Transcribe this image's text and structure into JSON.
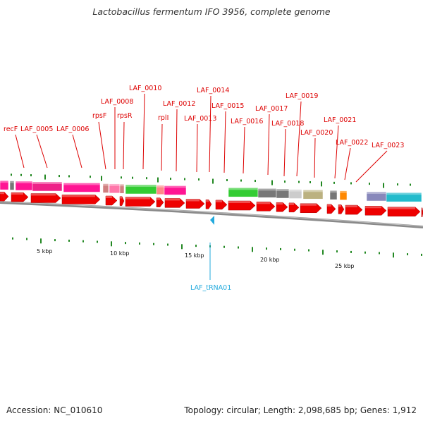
{
  "title": "Lactobacillus fermentum IFO 3956, complete genome",
  "footer": {
    "accession": "Accession: NC_010610",
    "info": "Topology: circular; Length: 2,098,685 bp; Genes: 1,912"
  },
  "colors": {
    "gene_label": "#dd0000",
    "trna_label": "#22aadd",
    "cds": "#ee0000",
    "backbone": "#8a8a8a",
    "tick": "#228822"
  },
  "gene_labels": [
    {
      "id": "recF",
      "text": "recF"
    },
    {
      "id": "LAF_0005",
      "text": "LAF_0005"
    },
    {
      "id": "LAF_0006",
      "text": "LAF_0006"
    },
    {
      "id": "rpsF",
      "text": "rpsF"
    },
    {
      "id": "LAF_0008",
      "text": "LAF_0008"
    },
    {
      "id": "rpsR",
      "text": "rpsR"
    },
    {
      "id": "LAF_0010",
      "text": "LAF_0010"
    },
    {
      "id": "rplI",
      "text": "rplI"
    },
    {
      "id": "LAF_0012",
      "text": "LAF_0012"
    },
    {
      "id": "LAF_0013",
      "text": "LAF_0013"
    },
    {
      "id": "LAF_0014",
      "text": "LAF_0014"
    },
    {
      "id": "LAF_0015",
      "text": "LAF_0015"
    },
    {
      "id": "LAF_0016",
      "text": "LAF_0016"
    },
    {
      "id": "LAF_0017",
      "text": "LAF_0017"
    },
    {
      "id": "LAF_0018",
      "text": "LAF_0018"
    },
    {
      "id": "LAF_0019",
      "text": "LAF_0019"
    },
    {
      "id": "LAF_0020",
      "text": "LAF_0020"
    },
    {
      "id": "LAF_0021",
      "text": "LAF_0021"
    },
    {
      "id": "LAF_0022",
      "text": "LAF_0022"
    },
    {
      "id": "LAF_0023",
      "text": "LAF_0023"
    }
  ],
  "trna_label": "LAF_tRNA01",
  "scale_labels": [
    "5 kbp",
    "10 kbp",
    "15 kbp",
    "20 kbp",
    "25 kbp"
  ]
}
